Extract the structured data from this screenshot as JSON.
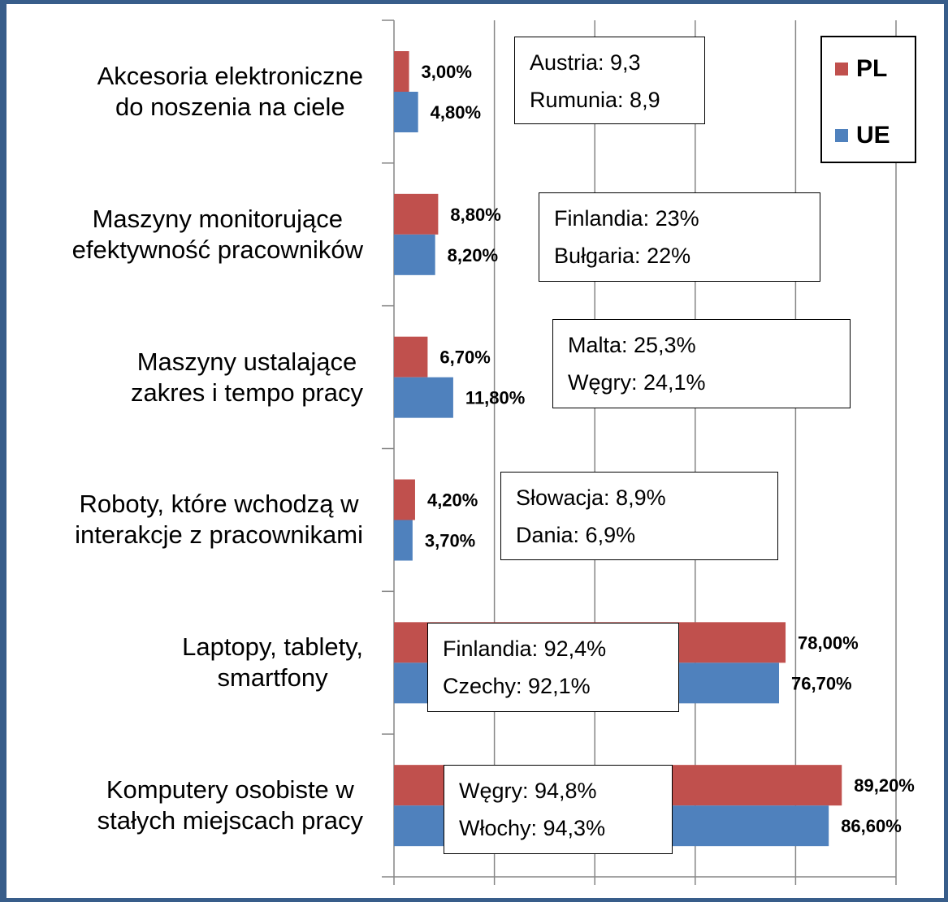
{
  "chart_data": {
    "type": "bar",
    "orientation": "horizontal",
    "categories": [
      "Akcesoria elektroniczne\ndo noszenia na ciele",
      "Maszyny monitorujące\nefektywność pracowników",
      "Maszyny ustalające\nzakres i tempo pracy",
      "Roboty, które wchodzą w\ninterakcje z pracownikami",
      "Laptopy, tablety,\nsmartfony",
      "Komputery osobiste w\nstałych miejscach pracy"
    ],
    "series": [
      {
        "name": "PL",
        "color": "#c0504d",
        "values": [
          3,
          8.8,
          6.7,
          4.2,
          78,
          89.2
        ],
        "value_labels": [
          "3,00%",
          "8,80%",
          "6,70%",
          "4,20%",
          "78,00%",
          "89,20%"
        ]
      },
      {
        "name": "UE",
        "color": "#4f81bd",
        "values": [
          4.8,
          8.2,
          11.8,
          3.7,
          76.7,
          86.6
        ],
        "value_labels": [
          "4,80%",
          "8,20%",
          "11,80%",
          "3,70%",
          "76,70%",
          "86,60%"
        ]
      }
    ],
    "xlim": [
      0,
      100
    ],
    "xticks": [
      0,
      20,
      40,
      60,
      80,
      100
    ],
    "grid": true,
    "legend": "upper right",
    "annotations": [
      [
        "Austria: 9,3",
        "Rumunia: 8,9"
      ],
      [
        "Finlandia: 23%",
        "Bułgaria: 22%"
      ],
      [
        "Malta: 25,3%",
        "Węgry: 24,1%"
      ],
      [
        "Słowacja: 8,9%",
        "Dania: 6,9%"
      ],
      [
        "Finlandia: 92,4%",
        "Czechy: 92,1%"
      ],
      [
        "Węgry: 94,8%",
        "Włochy: 94,3%"
      ]
    ]
  }
}
